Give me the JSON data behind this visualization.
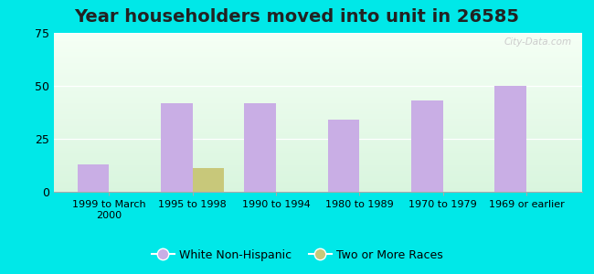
{
  "title": "Year householders moved into unit in 26585",
  "categories": [
    "1999 to March\n2000",
    "1995 to 1998",
    "1990 to 1994",
    "1980 to 1989",
    "1970 to 1979",
    "1969 or earlier"
  ],
  "white_non_hispanic": [
    13,
    42,
    42,
    34,
    43,
    50
  ],
  "two_or_more_races": [
    0,
    11,
    0,
    0,
    0,
    0
  ],
  "bar_color_white": "#c9aee5",
  "bar_color_two": "#c8c87a",
  "ylim": [
    0,
    75
  ],
  "yticks": [
    0,
    25,
    50,
    75
  ],
  "outer_bg": "#00e8e8",
  "watermark": "City-Data.com",
  "legend_labels": [
    "White Non-Hispanic",
    "Two or More Races"
  ],
  "bar_width": 0.38,
  "title_fontsize": 14
}
